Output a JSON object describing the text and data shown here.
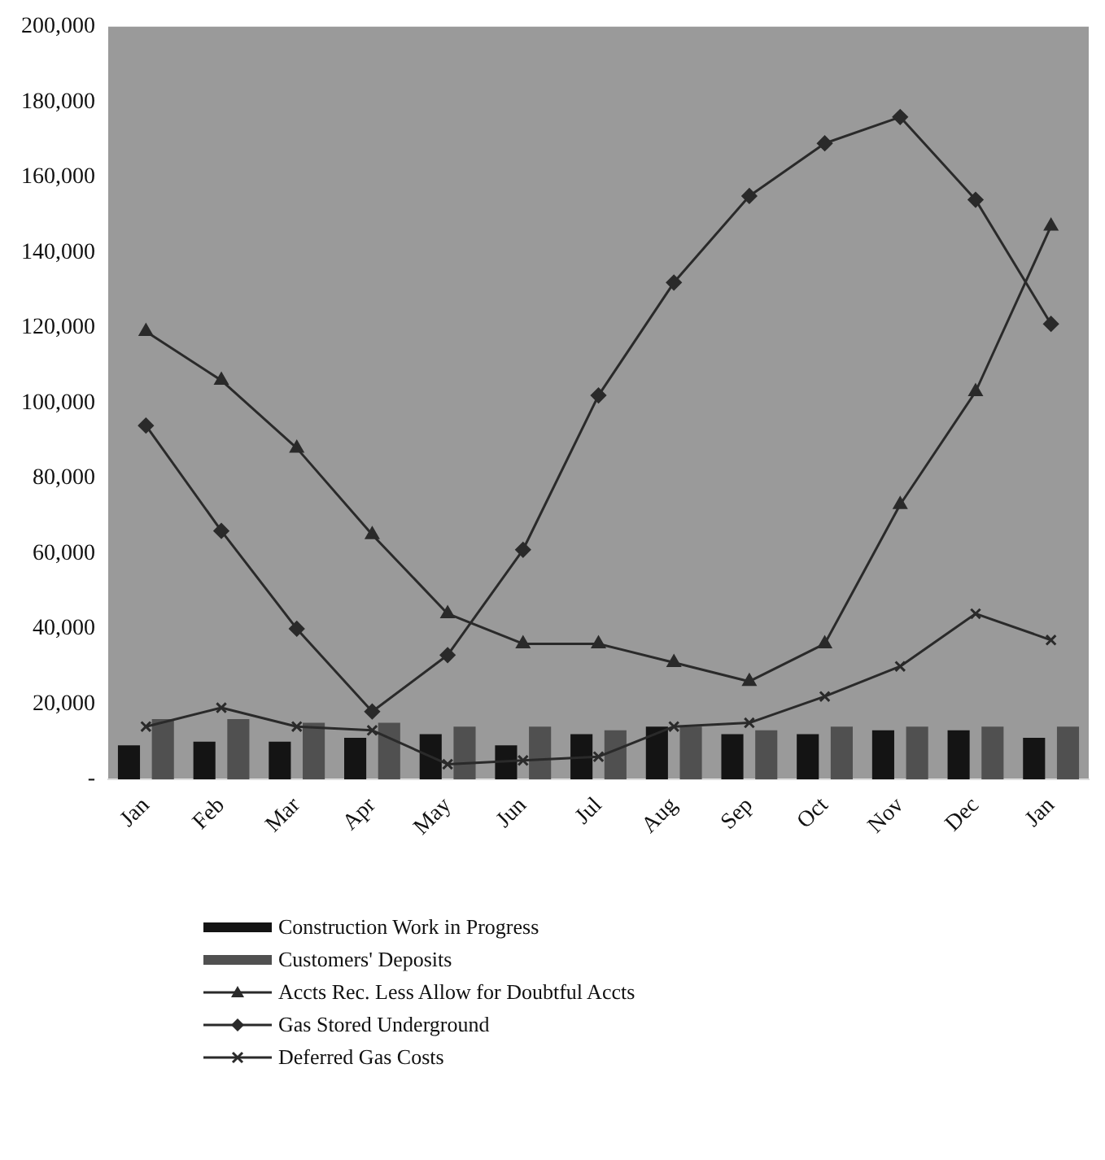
{
  "chart_data": {
    "type": "bar",
    "categories": [
      "Jan",
      "Feb",
      "Mar",
      "Apr",
      "May",
      "Jun",
      "Jul",
      "Aug",
      "Sep",
      "Oct",
      "Nov",
      "Dec",
      "Jan"
    ],
    "series": [
      {
        "name": "Construction Work in Progress",
        "color": "#141414",
        "values": [
          9000,
          10000,
          10000,
          11000,
          12000,
          9000,
          12000,
          14000,
          12000,
          12000,
          13000,
          13000,
          11000
        ]
      },
      {
        "name": "Customers' Deposits",
        "color": "#505050",
        "values": [
          16000,
          16000,
          15000,
          15000,
          14000,
          14000,
          13000,
          14000,
          13000,
          14000,
          14000,
          14000,
          14000
        ]
      },
      {
        "name": "Accts Rec. Less Allow for Doubtful Accts",
        "type": "line",
        "marker": "triangle",
        "color": "#2a2a2a",
        "values": [
          119000,
          106000,
          88000,
          65000,
          44000,
          36000,
          36000,
          31000,
          26000,
          36000,
          73000,
          103000,
          147000
        ]
      },
      {
        "name": "Gas Stored Underground",
        "type": "line",
        "marker": "diamond",
        "color": "#2a2a2a",
        "values": [
          94000,
          66000,
          40000,
          18000,
          33000,
          61000,
          102000,
          132000,
          155000,
          169000,
          176000,
          154000,
          121000
        ]
      },
      {
        "name": "Deferred Gas Costs",
        "type": "line",
        "marker": "cross",
        "color": "#2a2a2a",
        "values": [
          14000,
          19000,
          14000,
          13000,
          4000,
          5000,
          6000,
          14000,
          15000,
          22000,
          30000,
          44000,
          37000
        ]
      }
    ],
    "ylim": [
      0,
      200000
    ],
    "yticks": [
      {
        "value": 0,
        "label": "-"
      },
      {
        "value": 20000,
        "label": "20,000"
      },
      {
        "value": 40000,
        "label": "40,000"
      },
      {
        "value": 60000,
        "label": "60,000"
      },
      {
        "value": 80000,
        "label": "80,000"
      },
      {
        "value": 100000,
        "label": "100,000"
      },
      {
        "value": 120000,
        "label": "120,000"
      },
      {
        "value": 140000,
        "label": "140,000"
      },
      {
        "value": 160000,
        "label": "160,000"
      },
      {
        "value": 180000,
        "label": "180,000"
      },
      {
        "value": 200000,
        "label": "200,000"
      }
    ],
    "grid": false,
    "legend": "bottom"
  }
}
